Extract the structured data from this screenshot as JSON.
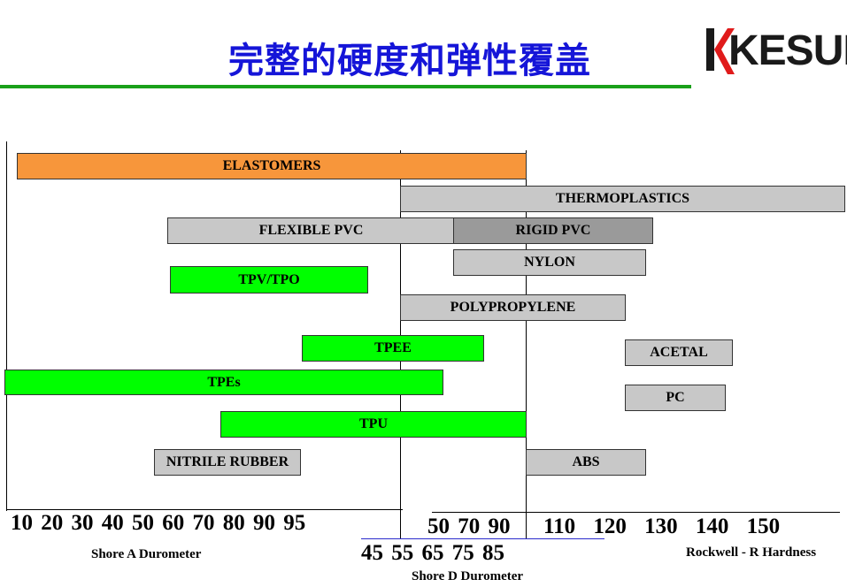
{
  "title": "完整的硬度和弹性覆盖",
  "logo": {
    "text": "KESUN",
    "accent_color": "#e01b1b"
  },
  "colors": {
    "title": "#1515d8",
    "rule": "#1aa01a",
    "orange": "#f7963b",
    "gray": "#c8c8c8",
    "dark_gray": "#9a9a9a",
    "green": "#00ff00"
  },
  "bars": [
    {
      "label": "ELASTOMERS",
      "color": "orange"
    },
    {
      "label": "THERMOPLASTICS",
      "color": "gray"
    },
    {
      "label": "FLEXIBLE  PVC",
      "color": "gray"
    },
    {
      "label": "RIGID PVC",
      "color": "dark_gray"
    },
    {
      "label": "NYLON",
      "color": "gray"
    },
    {
      "label": "TPV/TPO",
      "color": "green"
    },
    {
      "label": "POLYPROPYLENE",
      "color": "gray"
    },
    {
      "label": "TPEE",
      "color": "green"
    },
    {
      "label": "ACETAL",
      "color": "gray"
    },
    {
      "label": "TPEs",
      "color": "green"
    },
    {
      "label": "PC",
      "color": "gray"
    },
    {
      "label": "TPU",
      "color": "green"
    },
    {
      "label": "NITRILE  RUBBER",
      "color": "gray"
    },
    {
      "label": "ABS",
      "color": "gray"
    }
  ],
  "scales": {
    "shore_a": {
      "ticks": "10 20 30 40 50 60 70 80 90 95",
      "label": "Shore A Durometer"
    },
    "shore_d_upper": {
      "ticks": "50 70 90"
    },
    "shore_d_lower": {
      "ticks": "45  55  65  75  85",
      "label": "Shore D Durometer"
    },
    "rockwell": {
      "ticks": "110 120 130 140 150",
      "label": "Rockwell - R Hardness"
    }
  }
}
